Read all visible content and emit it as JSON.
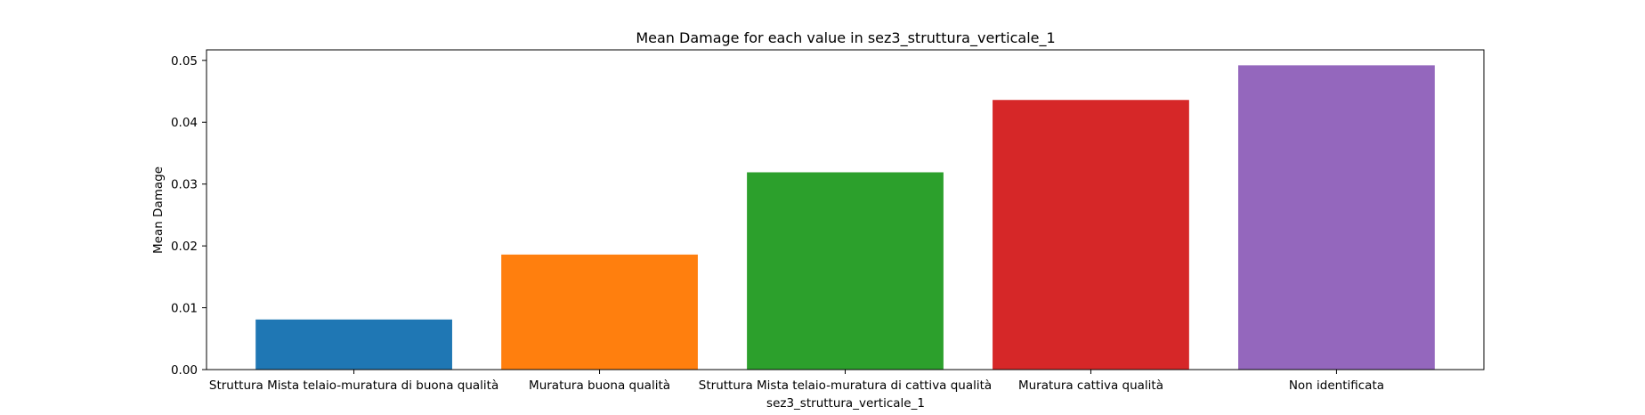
{
  "chart_data": {
    "type": "bar",
    "title": "Mean Damage for each value in sez3_struttura_verticale_1",
    "xlabel": "sez3_struttura_verticale_1",
    "ylabel": "Mean Damage",
    "categories": [
      "Struttura Mista telaio-muratura di buona qualità",
      "Muratura buona qualità",
      "Struttura Mista telaio-muratura di cattiva qualità",
      "Muratura cattiva qualità",
      "Non identificata"
    ],
    "values": [
      0.0081,
      0.0186,
      0.0319,
      0.0436,
      0.0492
    ],
    "colors": [
      "#1f77b4",
      "#ff7f0e",
      "#2ca02c",
      "#d62728",
      "#9467bd"
    ],
    "ylim": [
      0,
      0.0517
    ],
    "yticks": [
      0.0,
      0.01,
      0.02,
      0.03,
      0.04,
      0.05
    ],
    "ytick_labels": [
      "0.00",
      "0.01",
      "0.02",
      "0.03",
      "0.04",
      "0.05"
    ],
    "grid": false,
    "legend": "none"
  }
}
